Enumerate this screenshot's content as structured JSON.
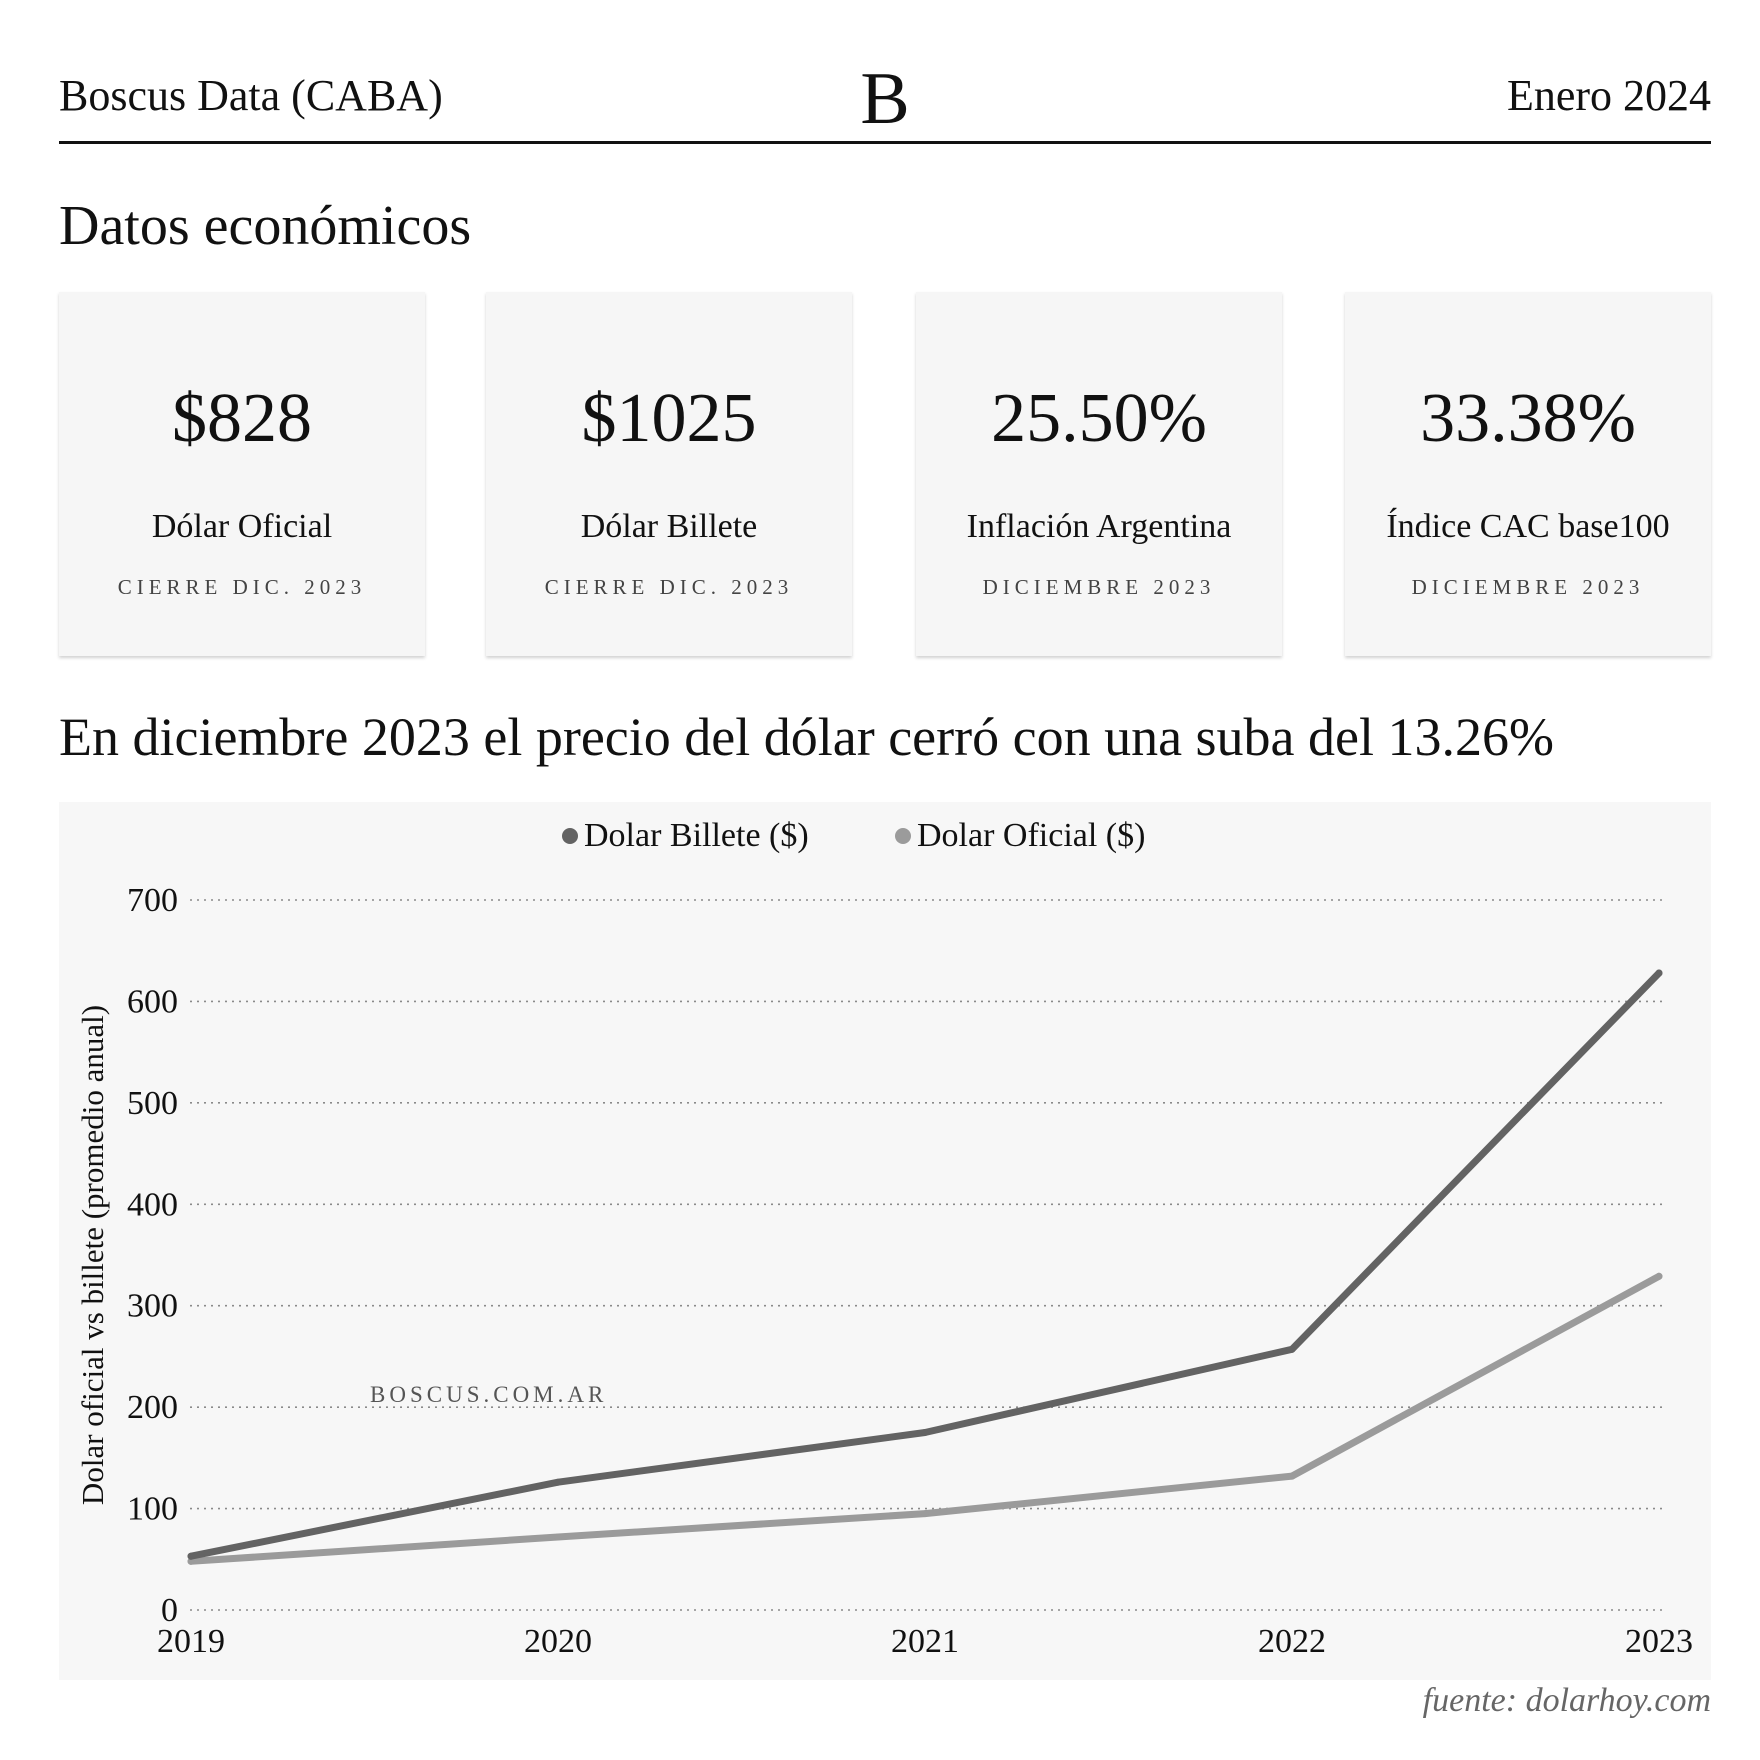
{
  "header": {
    "brand": "Boscus Data (CABA)",
    "logo": "B",
    "date": "Enero 2024"
  },
  "section_title": "Datos económicos",
  "cards": [
    {
      "value": "$828",
      "label": "Dólar Oficial",
      "sub": "CIERRE DIC. 2023"
    },
    {
      "value": "$1025",
      "label": "Dólar Billete",
      "sub": "CIERRE DIC. 2023"
    },
    {
      "value": "25.50%",
      "label": "Inflación Argentina",
      "sub": "DICIEMBRE 2023"
    },
    {
      "value": "33.38%",
      "label": "Índice CAC base100",
      "sub": "DICIEMBRE 2023"
    }
  ],
  "headline": "En diciembre 2023 el precio del dólar cerró con una suba del 13.26%",
  "source": "fuente: dolarhoy.com",
  "chart_data": {
    "type": "line",
    "title": "",
    "xlabel": "",
    "ylabel": "Dolar oficial vs billete (promedio anual)",
    "x": [
      "2019",
      "2020",
      "2021",
      "2022",
      "2023"
    ],
    "yticks": [
      "0",
      "100",
      "200",
      "300",
      "400",
      "500",
      "600",
      "700"
    ],
    "ylim": [
      0,
      700
    ],
    "grid": "horizontal dotted",
    "legend_position": "top-center",
    "watermark": "BOSCUS.COM.AR",
    "series": [
      {
        "name": "Dolar Billete ($)",
        "color": "#636363",
        "values": [
          53,
          126,
          175,
          257,
          628
        ]
      },
      {
        "name": "Dolar Oficial ($)",
        "color": "#9b9b9b",
        "values": [
          48,
          72,
          95,
          132,
          329
        ]
      }
    ]
  }
}
